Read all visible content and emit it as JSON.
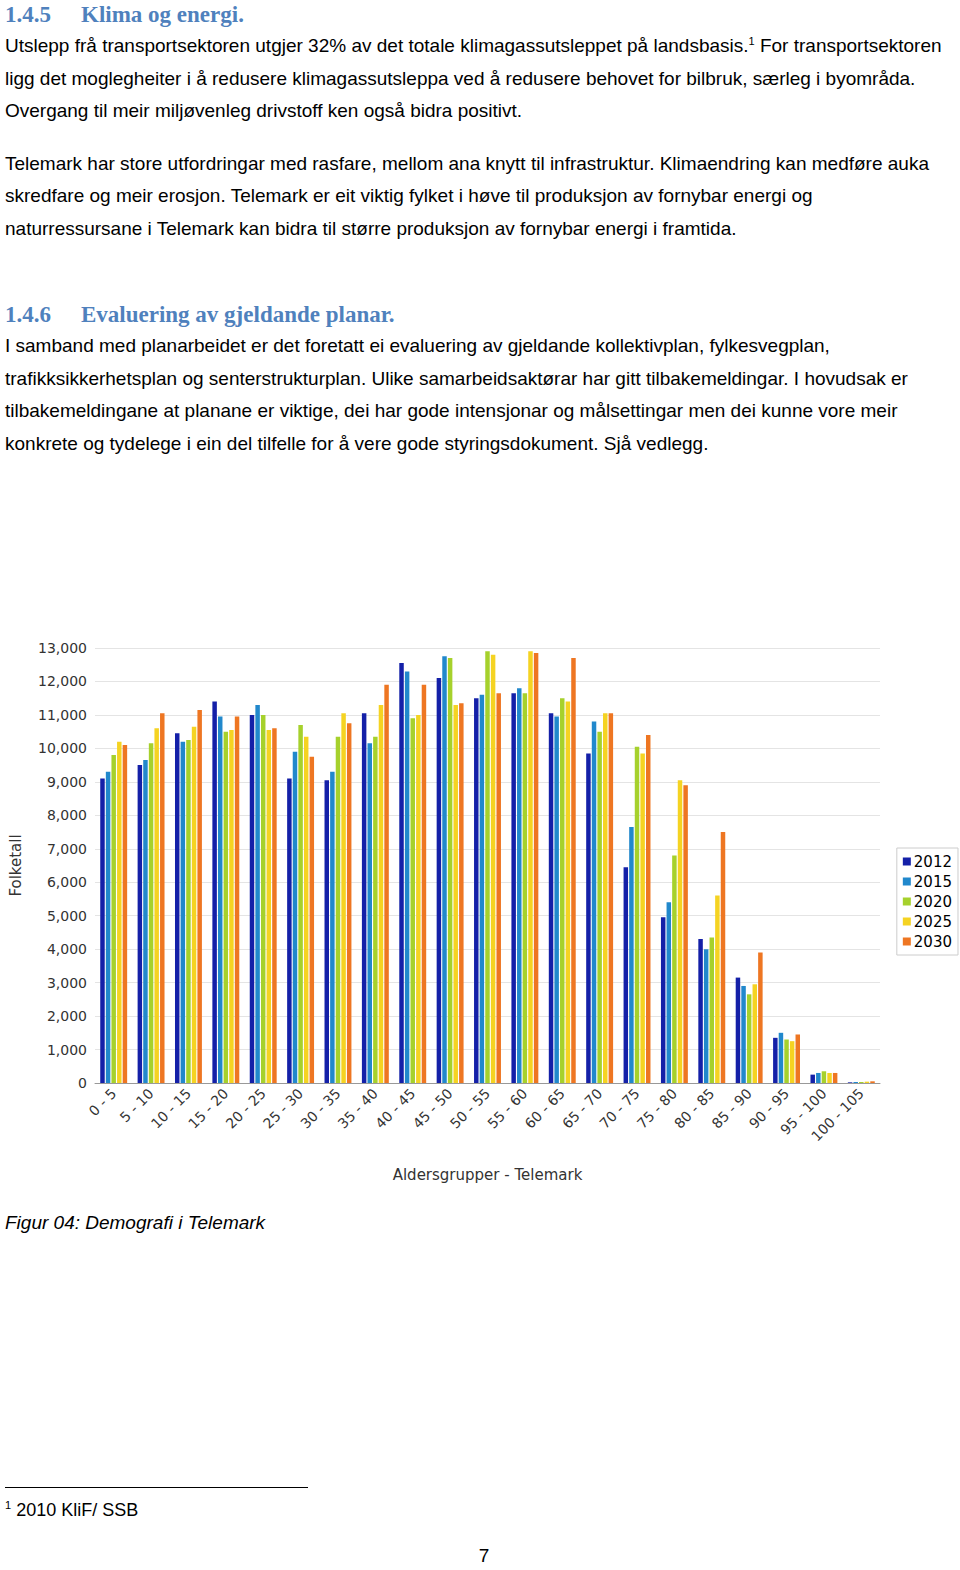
{
  "sections": [
    {
      "number": "1.4.5",
      "title": "Klima og energi.",
      "paragraphs": [
        [
          "Utslepp frå transportsektoren utgjer 32% av det totale klimagassutsleppet på landsbasis.",
          {
            "sup": "1"
          },
          " For transportsektoren ligg det moglegheiter i å redusere klimagassutsleppa ved å redusere behovet for bilbruk, særleg i byområda. Overgang til meir miljøvenleg drivstoff ken også bidra positivt."
        ],
        [
          "Telemark har store utfordringar med rasfare, mellom ana knytt til infrastruktur. Klimaendring kan medføre auka skredfare og meir erosjon. Telemark er eit viktig fylket i høve til produksjon av fornybar energi og naturressursane i Telemark kan bidra til større produksjon av fornybar energi i framtida."
        ]
      ]
    },
    {
      "number": "1.4.6",
      "title": "Evaluering av gjeldande planar.",
      "paragraphs": [
        [
          "I samband med planarbeidet er det foretatt ei evaluering av gjeldande kollektivplan, fylkesvegplan, trafikksikkerhetsplan og senterstrukturplan. Ulike samarbeidsaktørar har gitt tilbakemeldingar. I hovudsak er tilbakemeldingane at planane er viktige, dei har gode intensjonar og målsettingar men dei kunne vore meir konkrete og tydelege i ein del tilfelle for å vere gode styringsdokument. Sjå vedlegg."
        ]
      ]
    }
  ],
  "chart_data": {
    "type": "bar",
    "x_label": "Aldersgrupper - Telemark",
    "y_label": "Folketall",
    "categories": [
      "0 - 5",
      "5 - 10",
      "10 - 15",
      "15 - 20",
      "20 - 25",
      "25 - 30",
      "30 - 35",
      "35 - 40",
      "40 - 45",
      "45 - 50",
      "50 - 55",
      "55 - 60",
      "60 - 65",
      "65 - 70",
      "70 - 75",
      "75 - 80",
      "80 - 85",
      "85 - 90",
      "90 - 95",
      "95 - 100",
      "100 - 105"
    ],
    "series": [
      {
        "name": "2012",
        "color": "#1420a8",
        "values": [
          9100,
          9500,
          10450,
          11400,
          11000,
          9100,
          9050,
          11050,
          12550,
          12100,
          11500,
          11650,
          11050,
          9850,
          6450,
          4950,
          4300,
          3150,
          1350,
          250,
          20
        ]
      },
      {
        "name": "2015",
        "color": "#2188cc",
        "values": [
          9300,
          9650,
          10200,
          10950,
          11300,
          9900,
          9300,
          10150,
          12300,
          12750,
          11600,
          11800,
          10950,
          10800,
          7650,
          5400,
          4000,
          2900,
          1500,
          300,
          30
        ]
      },
      {
        "name": "2020",
        "color": "#a6d12c",
        "values": [
          9800,
          10150,
          10250,
          10500,
          11000,
          10700,
          10350,
          10350,
          10900,
          12700,
          12900,
          11650,
          11500,
          10500,
          10050,
          6800,
          4350,
          2650,
          1300,
          350,
          30
        ]
      },
      {
        "name": "2025",
        "color": "#f5d322",
        "values": [
          10200,
          10600,
          10650,
          10550,
          10550,
          10350,
          11050,
          11300,
          11000,
          11300,
          12800,
          12900,
          11400,
          11050,
          9850,
          9050,
          5600,
          2950,
          1250,
          300,
          40
        ]
      },
      {
        "name": "2030",
        "color": "#ee7622",
        "values": [
          10100,
          11050,
          11150,
          10950,
          10600,
          9750,
          10750,
          11900,
          11900,
          11350,
          11650,
          12850,
          12700,
          11050,
          10400,
          8900,
          7500,
          3900,
          1450,
          300,
          50
        ]
      }
    ],
    "ylim": [
      0,
      13000
    ],
    "yticks": [
      0,
      {
        "value": 1000,
        "label": "1,000"
      },
      {
        "value": 2000,
        "label": "2,000"
      },
      {
        "value": 3000,
        "label": "3,000"
      },
      {
        "value": 4000,
        "label": "4,000"
      },
      {
        "value": 5000,
        "label": "5,000"
      },
      {
        "value": 6000,
        "label": "6,000"
      },
      {
        "value": 7000,
        "label": "7,000"
      },
      {
        "value": 8000,
        "label": "8,000"
      },
      {
        "value": 9000,
        "label": "9,000"
      },
      {
        "value": 10000,
        "label": "10,000"
      },
      {
        "value": 11000,
        "label": "11,000"
      },
      {
        "value": 12000,
        "label": "12,000"
      },
      {
        "value": 13000,
        "label": "13,000"
      }
    ],
    "grid": true,
    "legend": "right"
  },
  "caption": "Figur 04: Demografi i Telemark",
  "footnote": {
    "number": "1",
    "text": "2010 KliF/ SSB"
  },
  "page_number": 7
}
